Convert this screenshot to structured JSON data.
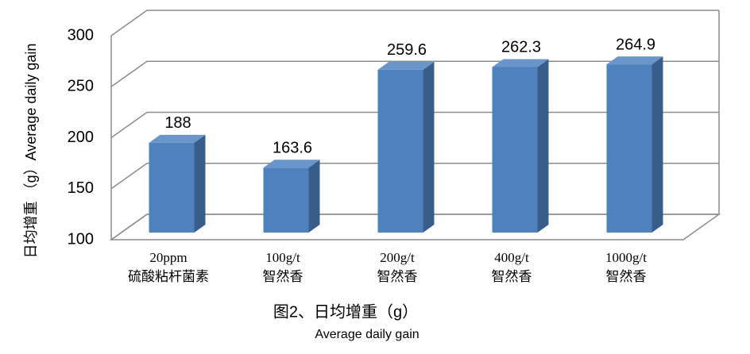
{
  "chart_data": {
    "type": "bar3d",
    "title": "图2、日均增重（g）",
    "subtitle": "Average daily gain",
    "y_label": "日均增重 （g）Average daily gain",
    "categories": [
      [
        "20ppm",
        "硫酸粘杆菌素"
      ],
      [
        "100g/t",
        "智然香"
      ],
      [
        "200g/t",
        "智然香"
      ],
      [
        "400g/t",
        "智然香"
      ],
      [
        "1000g/t",
        "智然香"
      ]
    ],
    "values": [
      188,
      163.6,
      259.6,
      262.3,
      264.9
    ],
    "color": "#4f81bd",
    "ylim": [
      100,
      300
    ],
    "yticks": [
      100,
      150,
      200,
      250,
      300
    ],
    "grid": true
  }
}
